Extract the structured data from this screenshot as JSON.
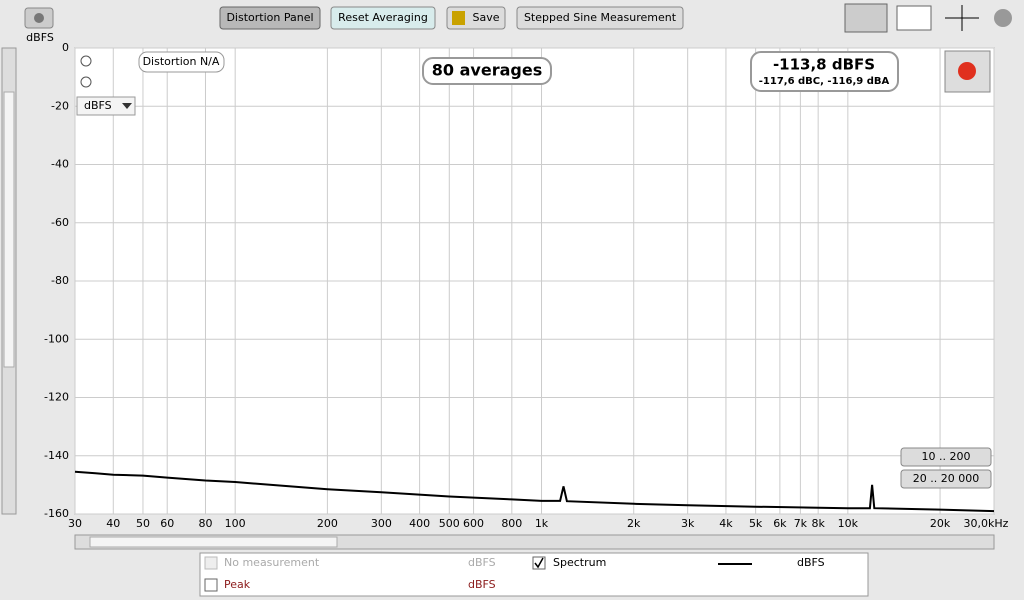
{
  "toolbar": {
    "buttons": [
      "Distortion Panel",
      "Reset Averaging",
      "Save",
      "Stepped Sine Measurement"
    ]
  },
  "overlay": {
    "distortion": "Distortion N/A",
    "averages": "80 averages",
    "level": "-113,8 dBFS",
    "level_detail": "-117,6 dBC, -116,9 dBA",
    "unit_select": "dBFS",
    "range_buttons": [
      "10 .. 200",
      "20 .. 20 000"
    ]
  },
  "legend_panel": {
    "rows": [
      {
        "name": "No measurement",
        "unit": "dBFS"
      },
      {
        "name": "Spectrum",
        "unit": "dBFS"
      },
      {
        "name": "Peak",
        "unit": "dBFS"
      }
    ]
  },
  "chart_data": {
    "type": "line",
    "y_label": "dBFS",
    "log_x": true,
    "grid": true,
    "xlim": [
      30,
      30000
    ],
    "ylim": [
      -160,
      0
    ],
    "xticks": [
      30,
      40,
      50,
      60,
      80,
      100,
      200,
      300,
      400,
      500,
      600,
      800,
      {
        "value": 1000,
        "label": "1k"
      },
      {
        "value": 2000,
        "label": "2k"
      },
      {
        "value": 3000,
        "label": "3k"
      },
      {
        "value": 4000,
        "label": "4k"
      },
      {
        "value": 5000,
        "label": "5k"
      },
      {
        "value": 6000,
        "label": "6k"
      },
      {
        "value": 7000,
        "label": "7k"
      },
      {
        "value": 8000,
        "label": "8k"
      },
      {
        "value": 10000,
        "label": "10k"
      },
      {
        "value": 20000,
        "label": "20k"
      },
      {
        "value": 30000,
        "label": "30,0kHz"
      }
    ],
    "yticks": [
      0,
      -20,
      -40,
      -60,
      -80,
      -100,
      -120,
      -140,
      -160
    ],
    "x": [
      30,
      35,
      40,
      50,
      60,
      80,
      100,
      150,
      200,
      300,
      500,
      800,
      1000,
      1150,
      1180,
      1210,
      2000,
      3000,
      5000,
      10000,
      11800,
      12000,
      12200,
      20000,
      30000
    ],
    "series": [
      {
        "name": "Spectrum",
        "color": "#000000",
        "values": [
          -145.5,
          -146,
          -146.5,
          -146.8,
          -147.5,
          -148.5,
          -149,
          -150.5,
          -151.5,
          -152.5,
          -154,
          -155,
          -155.5,
          -155.5,
          -150.5,
          -155.6,
          -156.5,
          -157,
          -157.5,
          -158,
          -158,
          -150,
          -158,
          -158.5,
          -159
        ]
      }
    ]
  }
}
